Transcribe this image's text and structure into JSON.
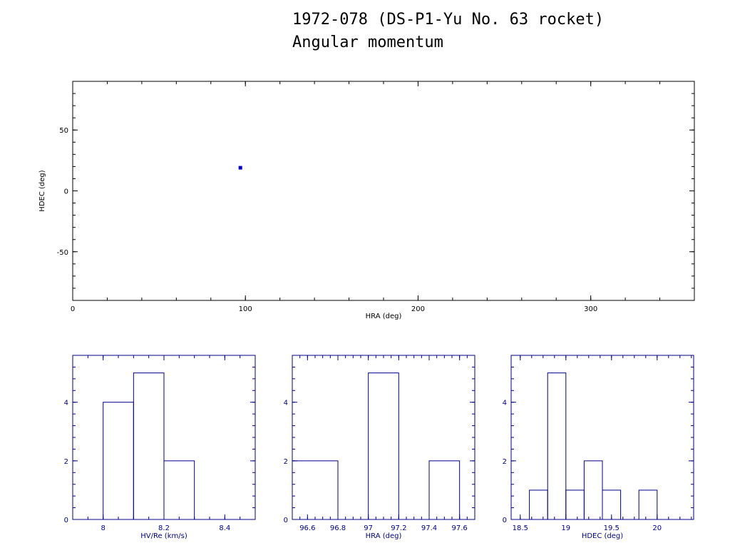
{
  "title_line1": "1972-078 (DS-P1-Yu No. 63 rocket)",
  "title_line2": "Angular momentum",
  "colors": {
    "axes_main": "#000000",
    "axes_hist": "#00008b",
    "point": "#0000cc"
  },
  "chart_data": [
    {
      "type": "scatter",
      "xlabel": "HRA (deg)",
      "ylabel": "HDEC (deg)",
      "xlim": [
        0,
        360
      ],
      "ylim": [
        -90,
        90
      ],
      "xticks": [
        0,
        100,
        200,
        300
      ],
      "yticks": [
        -50,
        0,
        50
      ],
      "points": [
        {
          "x": 97.1,
          "y": 19.0
        }
      ]
    },
    {
      "type": "bar",
      "subtype": "histogram",
      "xlabel": "HV/Re (km/s)",
      "ylabel": "",
      "xlim": [
        7.9,
        8.5
      ],
      "ylim": [
        0,
        5.6
      ],
      "xticks": [
        8,
        8.2,
        8.4
      ],
      "xtick_labels": [
        "8",
        "8.2",
        "8.4"
      ],
      "yticks": [
        0,
        2,
        4
      ],
      "bins": [
        {
          "x0": 8.0,
          "x1": 8.1,
          "count": 4
        },
        {
          "x0": 8.1,
          "x1": 8.2,
          "count": 5
        },
        {
          "x0": 8.2,
          "x1": 8.3,
          "count": 2
        }
      ]
    },
    {
      "type": "bar",
      "subtype": "histogram",
      "xlabel": "HRA (deg)",
      "ylabel": "",
      "xlim": [
        96.5,
        97.7
      ],
      "ylim": [
        0,
        5.6
      ],
      "xticks": [
        96.6,
        96.8,
        97,
        97.2,
        97.4,
        97.6
      ],
      "xtick_labels": [
        "96.6",
        "96.8",
        "97",
        "97.2",
        "97.4",
        "97.6"
      ],
      "yticks": [
        0,
        2,
        4
      ],
      "bins": [
        {
          "x0": 96.5,
          "x1": 96.8,
          "count": 2
        },
        {
          "x0": 97.0,
          "x1": 97.2,
          "count": 5
        },
        {
          "x0": 97.4,
          "x1": 97.6,
          "count": 2
        }
      ]
    },
    {
      "type": "bar",
      "subtype": "histogram",
      "xlabel": "HDEC (deg)",
      "ylabel": "",
      "xlim": [
        18.4,
        20.4
      ],
      "ylim": [
        0,
        5.6
      ],
      "xticks": [
        18.5,
        19,
        19.5,
        20
      ],
      "xtick_labels": [
        "18.5",
        "19",
        "19.5",
        "20"
      ],
      "yticks": [
        0,
        2,
        4
      ],
      "bins": [
        {
          "x0": 18.6,
          "x1": 18.8,
          "count": 1
        },
        {
          "x0": 18.8,
          "x1": 19.0,
          "count": 5
        },
        {
          "x0": 19.0,
          "x1": 19.2,
          "count": 1
        },
        {
          "x0": 19.2,
          "x1": 19.4,
          "count": 2
        },
        {
          "x0": 19.4,
          "x1": 19.6,
          "count": 1
        },
        {
          "x0": 19.8,
          "x1": 20.0,
          "count": 1
        }
      ]
    }
  ]
}
